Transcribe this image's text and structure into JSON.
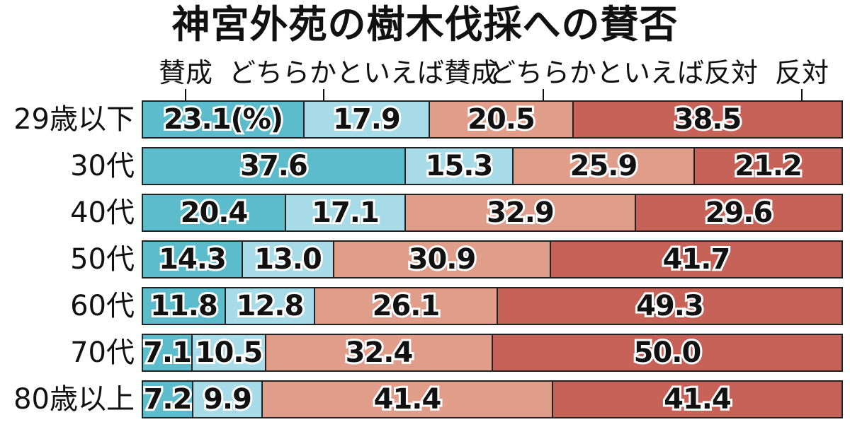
{
  "chart_data": {
    "type": "bar",
    "stacked": true,
    "orientation": "horizontal",
    "title": "神宮外苑の樹木伐採への賛否",
    "unit_label": "(%)",
    "categories": [
      "29歳以下",
      "30代",
      "40代",
      "50代",
      "60代",
      "70代",
      "80歳以上"
    ],
    "series": [
      {
        "name": "賛成",
        "color": "#5cbccb",
        "values": [
          23.1,
          37.6,
          20.4,
          14.3,
          11.8,
          7.1,
          7.2
        ]
      },
      {
        "name": "どちらかといえば賛成",
        "color": "#a6dbe7",
        "values": [
          17.9,
          15.3,
          17.1,
          13.0,
          12.8,
          10.5,
          9.9
        ]
      },
      {
        "name": "どちらかといえば反対",
        "color": "#df9d8a",
        "values": [
          20.5,
          25.9,
          32.9,
          30.9,
          26.1,
          32.4,
          41.4
        ]
      },
      {
        "name": "反対",
        "color": "#c66257",
        "values": [
          38.5,
          21.2,
          29.6,
          41.7,
          49.3,
          50.0,
          41.4
        ]
      }
    ],
    "xlim": [
      0,
      100
    ],
    "legend_placement": "top"
  }
}
